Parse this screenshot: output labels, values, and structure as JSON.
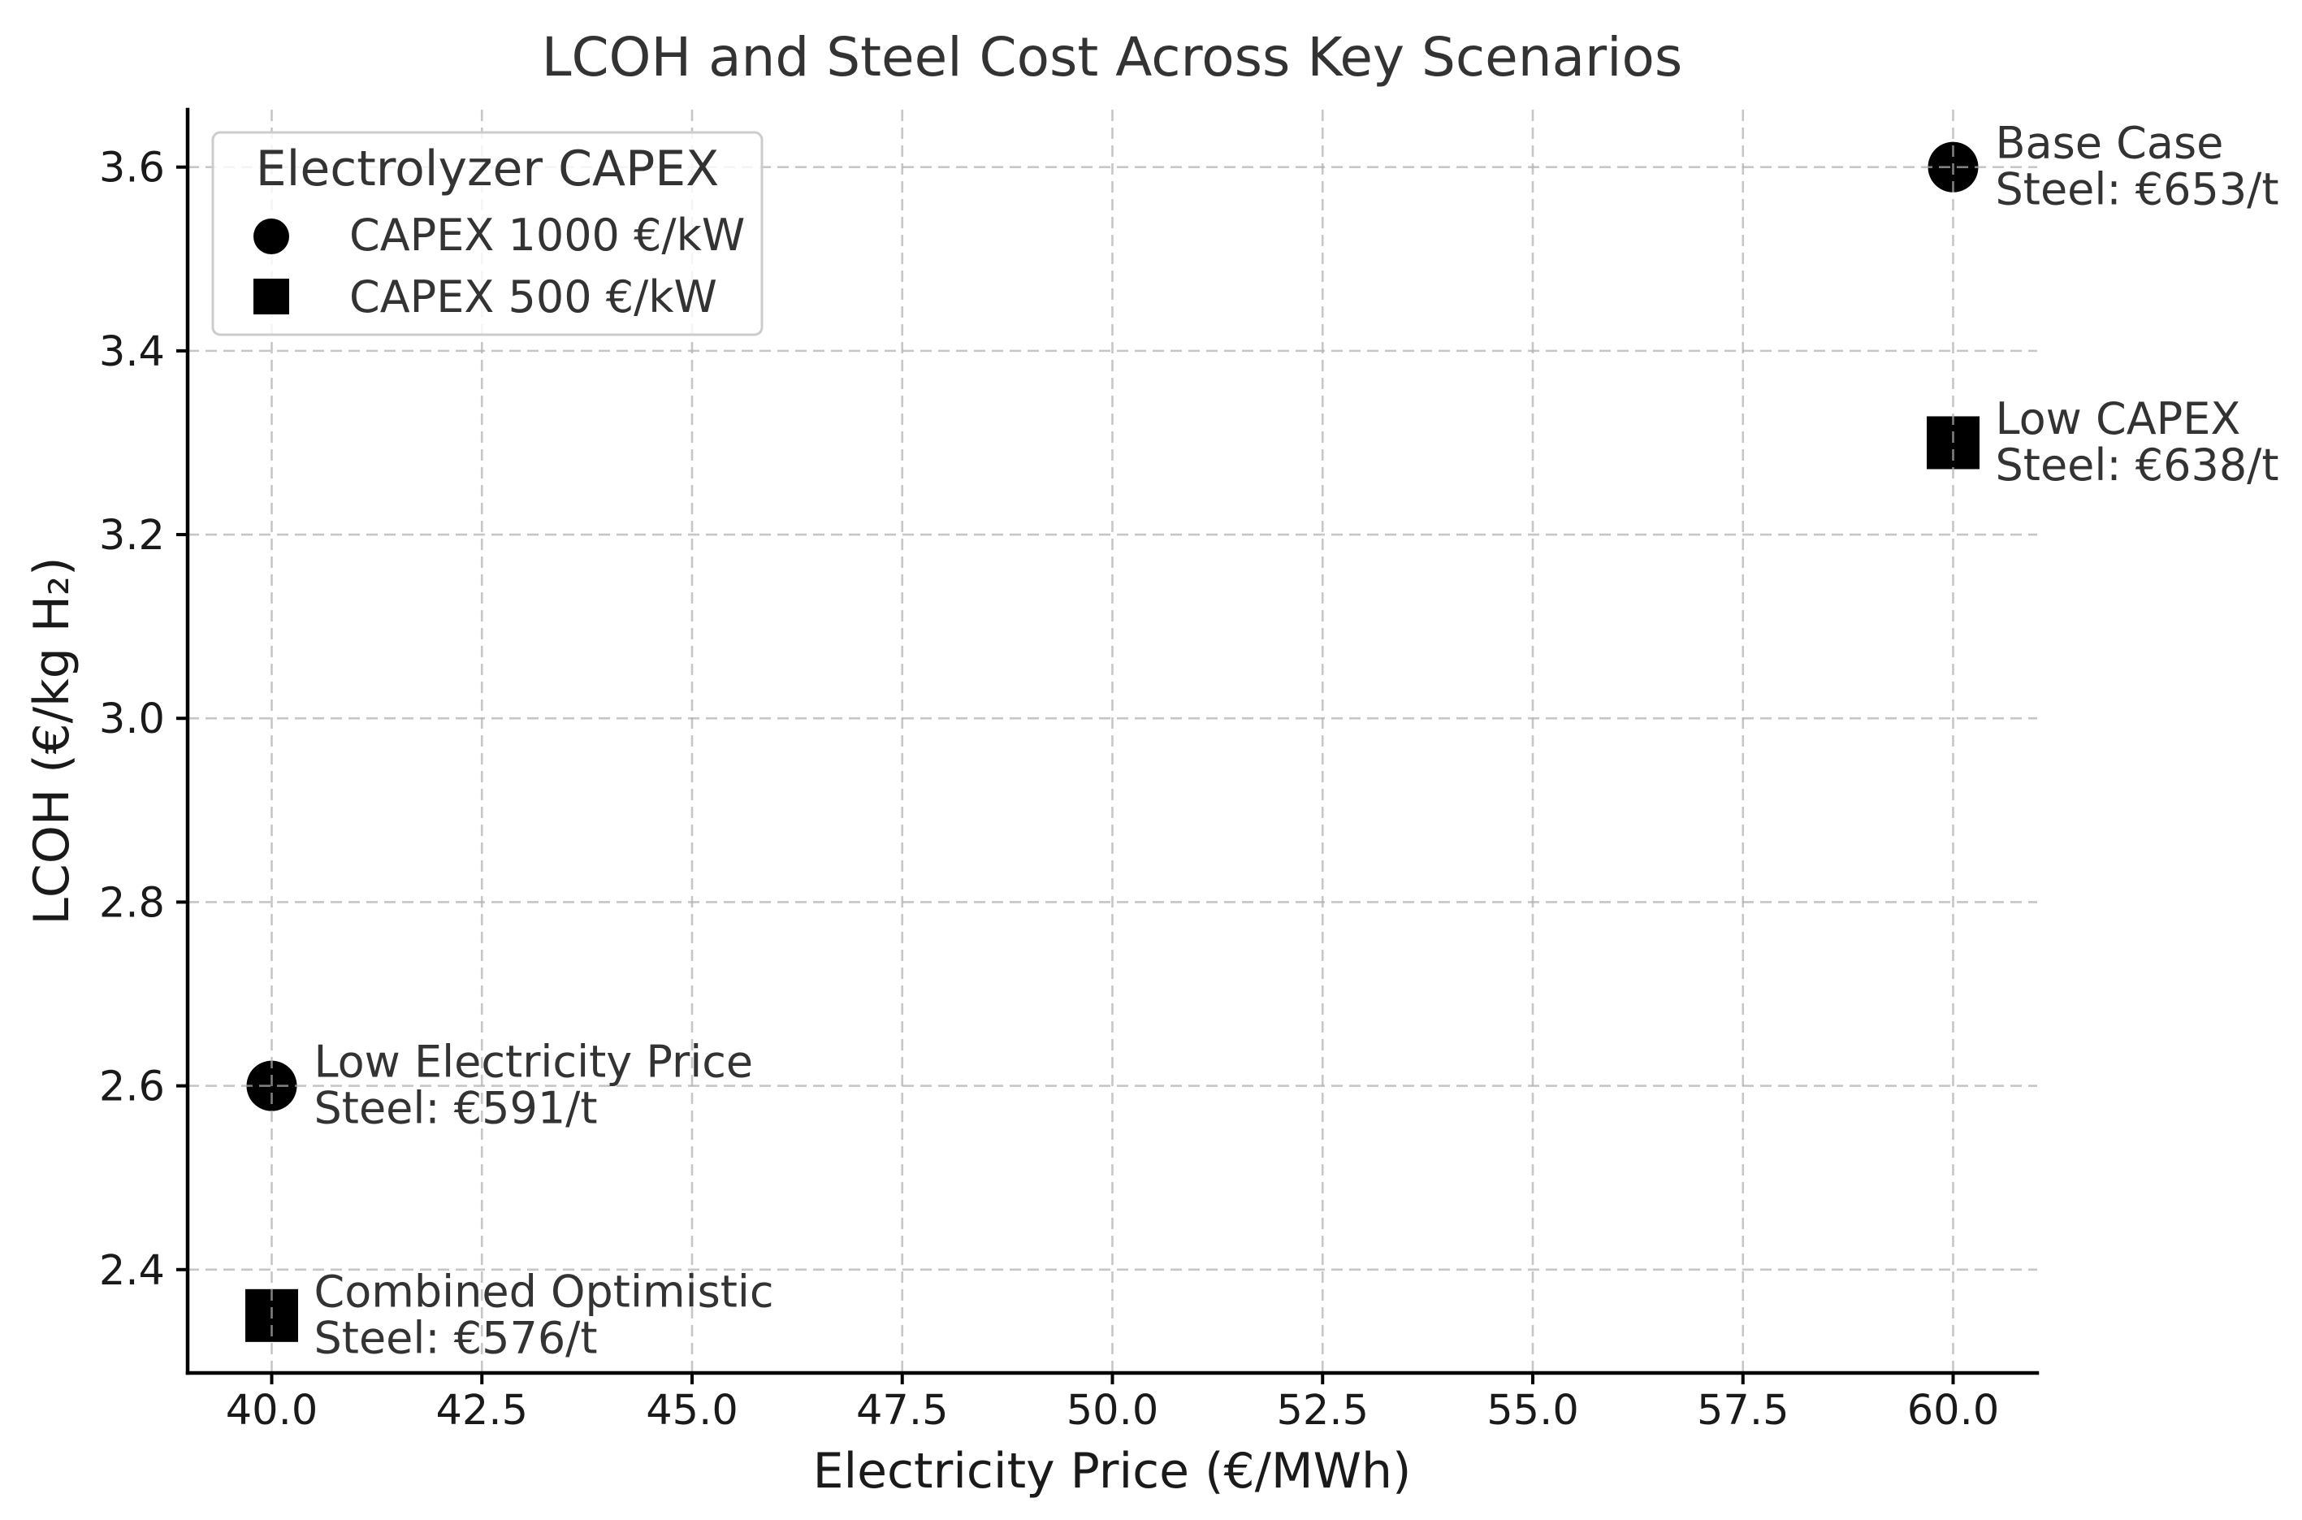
{
  "chart_data": {
    "type": "scatter",
    "title": "LCOH and Steel Cost Across Key Scenarios",
    "xlabel": "Electricity Price (€/MWh)",
    "ylabel": "LCOH (€/kg H₂)",
    "xlim": [
      39,
      61
    ],
    "ylim": [
      2.2875,
      3.6625
    ],
    "grid": true,
    "xticks": {
      "values": [
        40,
        42.5,
        45,
        47.5,
        50,
        52.5,
        55,
        57.5,
        60
      ],
      "labels": [
        "40.0",
        "42.5",
        "45.0",
        "47.5",
        "50.0",
        "52.5",
        "55.0",
        "57.5",
        "60.0"
      ]
    },
    "yticks": {
      "values": [
        2.4,
        2.6,
        2.8,
        3.0,
        3.2,
        3.4,
        3.6
      ],
      "labels": [
        "2.4",
        "2.6",
        "2.8",
        "3.0",
        "3.2",
        "3.4",
        "3.6"
      ]
    },
    "legend": {
      "title": "Electrolyzer CAPEX",
      "placement": "upper-left"
    },
    "series": [
      {
        "name": "CAPEX 1000 €/kW",
        "marker": "circle",
        "color": "#000000",
        "points": [
          {
            "x": 60,
            "y": 3.6,
            "label": "Base Case",
            "note": "Steel: €653/t"
          },
          {
            "x": 40,
            "y": 2.6,
            "label": "Low Electricity Price",
            "note": "Steel: €591/t"
          }
        ]
      },
      {
        "name": "CAPEX 500 €/kW",
        "marker": "square",
        "color": "#000000",
        "points": [
          {
            "x": 60,
            "y": 3.3,
            "label": "Low CAPEX",
            "note": "Steel: €638/t"
          },
          {
            "x": 40,
            "y": 2.35,
            "label": "Combined Optimistic",
            "note": "Steel: €576/t"
          }
        ]
      }
    ]
  },
  "colors": {
    "background": "#ffffff",
    "grid": "#b0b0b0",
    "axis": "#000000",
    "text": "#1a1a1a",
    "title": "#333333",
    "annotation": "#333333",
    "legend_border": "#cccccc"
  }
}
